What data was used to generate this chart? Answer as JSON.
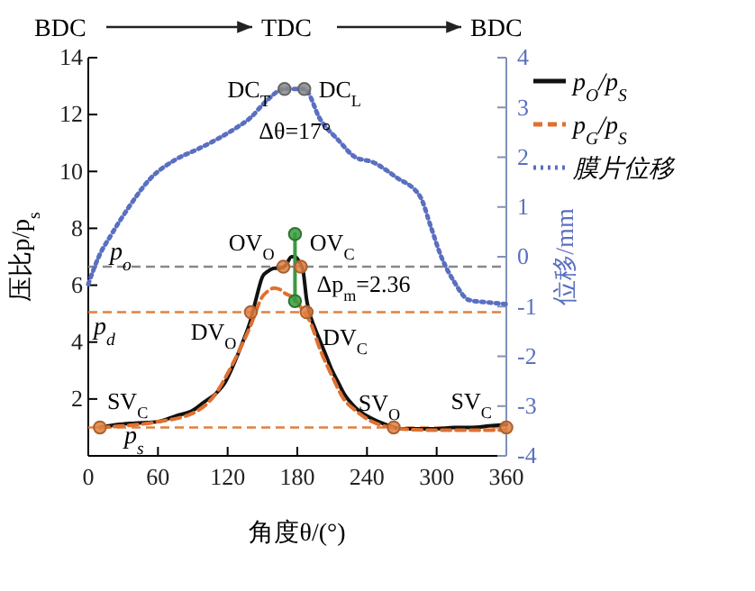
{
  "chart_data": {
    "type": "line",
    "xlabel": "角度θ/(°)",
    "ylabel": "压比p/p$_{s}$",
    "y2label": "位移/mm",
    "xlim": [
      0,
      360
    ],
    "xticks": [
      0,
      60,
      120,
      180,
      240,
      300,
      360
    ],
    "ylim": [
      0,
      14
    ],
    "yticks": [
      2,
      4,
      6,
      8,
      10,
      12,
      14
    ],
    "y2lim": [
      -4,
      4
    ],
    "y2ticks": [
      -4,
      -3,
      -2,
      -1,
      0,
      1,
      2,
      3,
      4
    ],
    "legend": "top right",
    "grid": false,
    "series": [
      {
        "name": "p$_{O}$/p$_{S}$",
        "color": "#111111",
        "line_style": "solid",
        "x": [
          10,
          25,
          40,
          60,
          75,
          90,
          100,
          110,
          118,
          125,
          132,
          140,
          145,
          150,
          155,
          160,
          165,
          170,
          175,
          178,
          182,
          185,
          188,
          190,
          195,
          200,
          205,
          210,
          215,
          220,
          230,
          240,
          250,
          260,
          270,
          285,
          300,
          315,
          330,
          345,
          360
        ],
        "values": [
          1.0,
          1.1,
          1.15,
          1.2,
          1.4,
          1.6,
          1.9,
          2.2,
          2.6,
          3.2,
          3.9,
          4.8,
          5.6,
          6.3,
          6.5,
          6.6,
          6.6,
          6.7,
          7.0,
          7.0,
          6.8,
          6.5,
          5.5,
          5.1,
          4.5,
          4.0,
          3.5,
          3.0,
          2.6,
          2.2,
          1.7,
          1.4,
          1.2,
          1.05,
          0.95,
          0.95,
          0.95,
          1.0,
          1.0,
          1.05,
          1.1
        ]
      },
      {
        "name": "p$_{G}$/p$_{S}$",
        "color": "#e07030",
        "line_style": "dashed",
        "x": [
          10,
          30,
          60,
          90,
          110,
          120,
          130,
          140,
          150,
          155,
          160,
          165,
          170,
          175,
          180,
          185,
          190,
          200,
          210,
          220,
          230,
          240,
          260,
          280,
          300,
          330,
          360
        ],
        "values": [
          1.0,
          1.05,
          1.2,
          1.5,
          2.2,
          2.9,
          3.7,
          4.6,
          5.6,
          5.8,
          5.9,
          5.85,
          5.7,
          5.6,
          5.4,
          5.1,
          4.8,
          3.7,
          2.8,
          2.0,
          1.6,
          1.3,
          1.0,
          0.92,
          0.9,
          0.9,
          0.9
        ]
      },
      {
        "name": "膜片位移",
        "color": "#5a6fc0",
        "line_style": "dotted",
        "axis": "y2",
        "x": [
          0,
          9,
          20,
          35,
          53,
          75,
          95,
          110,
          126,
          140,
          152,
          169,
          186,
          200,
          215,
          230,
          245,
          265,
          286,
          295,
          304,
          315,
          328,
          345,
          360
        ],
        "values": [
          -0.55,
          0.0,
          0.45,
          1.0,
          1.56,
          1.95,
          2.17,
          2.35,
          2.57,
          2.8,
          3.1,
          3.37,
          3.37,
          2.75,
          2.35,
          2.0,
          1.9,
          1.6,
          1.2,
          0.6,
          0.0,
          -0.5,
          -0.87,
          -0.92,
          -0.95
        ]
      },
      {
        "type": "line",
        "color": "#3a9a40",
        "line_style": "solid",
        "marker": "circle",
        "x": [
          178,
          178
        ],
        "values": [
          5.44,
          7.8
        ]
      },
      {
        "type": "scatter",
        "color": "#e08040",
        "marker": "circle",
        "x": [
          10,
          140,
          168,
          183,
          188,
          263,
          360
        ],
        "values": [
          1.0,
          5.05,
          6.65,
          6.65,
          5.05,
          1.0,
          1.0
        ]
      },
      {
        "type": "scatter",
        "color": "#888888",
        "marker": "circle",
        "axis": "y2",
        "x": [
          169,
          186
        ],
        "values": [
          3.37,
          3.37
        ]
      }
    ],
    "ref_lines": [
      {
        "axis": "y",
        "value": 6.65,
        "label": "p$_{o}$",
        "color": "#888888",
        "line_style": "dashed"
      },
      {
        "axis": "y",
        "value": 5.05,
        "label": "p$_{d}$",
        "color": "#e08040",
        "line_style": "dashed"
      },
      {
        "axis": "y",
        "value": 1.0,
        "label": "p$_{s}$",
        "color": "#e08040",
        "line_style": "dashed"
      }
    ],
    "annotations": [
      "BDC",
      "TDC",
      "BDC",
      {
        "text": "DC$_{T}$",
        "x": 169,
        "y": 12.85
      },
      {
        "text": "DC$_{L}$",
        "x": 186,
        "y": 12.85
      },
      {
        "text": "Δθ=17°",
        "x": 178,
        "y": 12.85
      },
      {
        "text": "OV$_{O}$",
        "x": 168,
        "y": 6.65
      },
      {
        "text": "OV$_{C}$",
        "x": 183,
        "y": 6.65
      },
      {
        "text": "Δp$_{m}$=2.36",
        "x": 178,
        "y": 6.65
      },
      {
        "text": "DV$_{O}$",
        "x": 140,
        "y": 5.05
      },
      {
        "text": "DV$_{C}$",
        "x": 188,
        "y": 5.05
      },
      {
        "text": "SV$_{C}$",
        "x": 10,
        "y": 1.0
      },
      {
        "text": "SV$_{O}$",
        "x": 263,
        "y": 1.0
      },
      {
        "text": "SV$_{C}$",
        "x": 360,
        "y": 1.0
      }
    ]
  }
}
